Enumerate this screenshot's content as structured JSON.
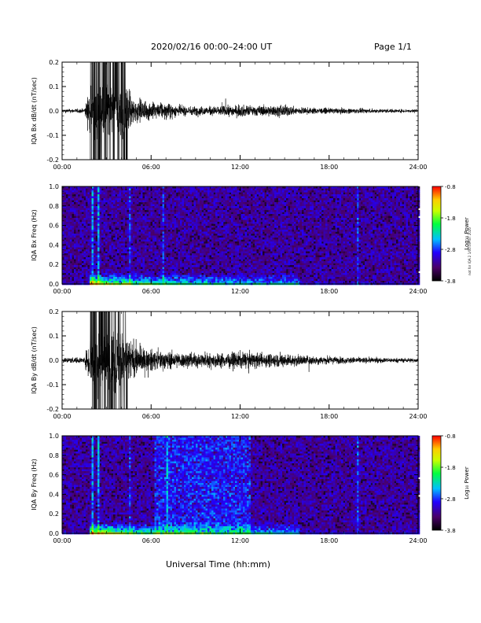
{
  "header": {
    "title": "2020/02/16  00:00–24:00 UT",
    "page": "Page 1/1"
  },
  "xlabel": "Universal Time (hh:mm)",
  "footnote": "not for IQA 2 1/00:00 IST 2020",
  "colorbar": {
    "label": "Log₁₀ Power",
    "ticks": [
      "-0.8",
      "-1.8",
      "-2.8",
      "-3.8"
    ],
    "range": [
      -3.8,
      -0.8
    ],
    "colormap": "rainbow (purple → blue → cyan → green → yellow → red)"
  },
  "chart_data": [
    {
      "type": "line",
      "ylabel": "IQA Bx dB/dt (nT/sec)",
      "xlim_hours": [
        0,
        24
      ],
      "ylim": [
        -0.2,
        0.2
      ],
      "x_ticks": [
        "00:00",
        "06:00",
        "12:00",
        "18:00",
        "24:00"
      ],
      "y_ticks": [
        "0.2",
        "0.1",
        "0.0",
        "-0.1",
        "-0.2"
      ],
      "series": [
        {
          "envelope_hours": [
            0,
            1.5,
            2.0,
            2.5,
            3.0,
            3.5,
            4.0,
            4.5,
            5.0,
            5.5,
            6.0,
            6.5,
            7.0,
            7.5,
            8.0,
            9.0,
            10.0,
            11.0,
            12.0,
            13.0,
            14.0,
            15.0,
            15.5,
            16.0,
            17.0,
            18.0,
            19.0,
            20.0,
            21.0,
            22.0,
            23.0,
            24.0
          ],
          "amplitude": [
            0.012,
            0.015,
            0.2,
            0.2,
            0.2,
            0.2,
            0.18,
            0.14,
            0.08,
            0.07,
            0.06,
            0.05,
            0.05,
            0.045,
            0.035,
            0.03,
            0.03,
            0.035,
            0.04,
            0.035,
            0.035,
            0.04,
            0.03,
            0.025,
            0.02,
            0.018,
            0.018,
            0.016,
            0.014,
            0.013,
            0.012,
            0.012
          ]
        }
      ]
    },
    {
      "type": "heatmap",
      "ylabel": "IQA Bx Freq (Hz)",
      "xlim_hours": [
        0,
        24
      ],
      "ylim": [
        0,
        1.0
      ],
      "x_ticks": [
        "00:00",
        "06:00",
        "12:00",
        "18:00",
        "24:00"
      ],
      "y_ticks": [
        "1.0",
        "0.8",
        "0.6",
        "0.4",
        "0.2",
        "0.0"
      ],
      "bright_streaks_hours": [
        2.1,
        2.5,
        4.6,
        6.8,
        19.8
      ],
      "low_freq_enhancement_hours": [
        1.9,
        16
      ]
    },
    {
      "type": "line",
      "ylabel": "IQA By dB/dt (nT/sec)",
      "xlim_hours": [
        0,
        24
      ],
      "ylim": [
        -0.2,
        0.2
      ],
      "x_ticks": [
        "00:00",
        "06:00",
        "12:00",
        "18:00",
        "24:00"
      ],
      "y_ticks": [
        "0.2",
        "0.1",
        "0.0",
        "-0.1",
        "-0.2"
      ],
      "series": [
        {
          "envelope_hours": [
            0,
            1.5,
            2.0,
            2.5,
            3.0,
            3.5,
            4.0,
            4.5,
            5.0,
            5.5,
            6.0,
            6.5,
            7.0,
            7.5,
            8.0,
            9.0,
            10.0,
            11.0,
            12.0,
            13.0,
            14.0,
            15.0,
            15.5,
            16.0,
            17.0,
            18.0,
            19.0,
            20.0,
            21.0,
            22.0,
            23.0,
            24.0
          ],
          "amplitude": [
            0.018,
            0.02,
            0.2,
            0.2,
            0.2,
            0.2,
            0.19,
            0.15,
            0.1,
            0.08,
            0.07,
            0.065,
            0.06,
            0.055,
            0.05,
            0.05,
            0.05,
            0.05,
            0.055,
            0.05,
            0.045,
            0.045,
            0.04,
            0.035,
            0.03,
            0.025,
            0.022,
            0.02,
            0.018,
            0.016,
            0.015,
            0.015
          ]
        }
      ]
    },
    {
      "type": "heatmap",
      "ylabel": "IQA By Freq (Hz)",
      "xlim_hours": [
        0,
        24
      ],
      "ylim": [
        0,
        1.0
      ],
      "x_ticks": [
        "00:00",
        "06:00",
        "12:00",
        "18:00",
        "24:00"
      ],
      "y_ticks": [
        "1.0",
        "0.8",
        "0.6",
        "0.4",
        "0.2",
        "0.0"
      ],
      "bright_streaks_hours": [
        2.1,
        2.5,
        4.6,
        7.0,
        19.8
      ],
      "elevated_band_hours": [
        6.2,
        12.7
      ],
      "low_freq_enhancement_hours": [
        1.9,
        16
      ]
    }
  ]
}
